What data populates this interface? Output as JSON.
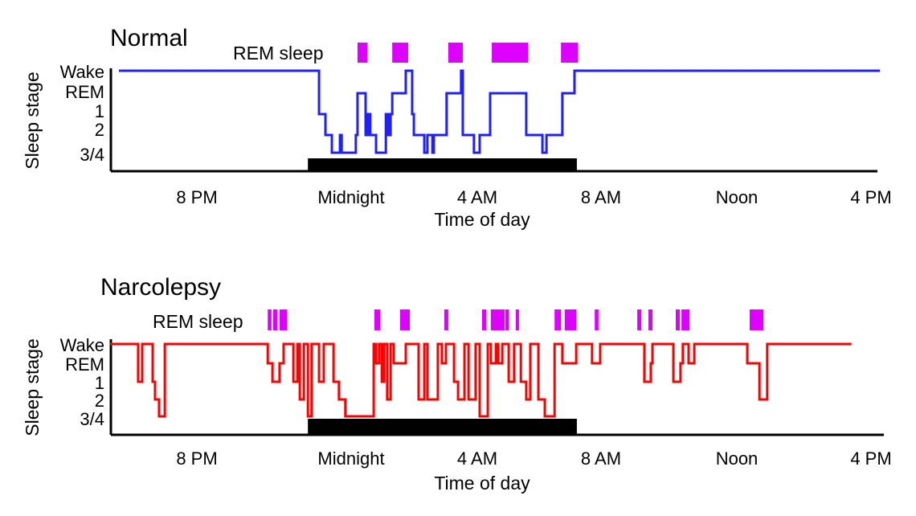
{
  "chart_data": [
    {
      "type": "line",
      "title": "Normal",
      "xlabel": "Time of day",
      "ylabel": "Sleep stage",
      "rem_label": "REM sleep",
      "x_unit": "hour of day (24 = midnight, 40 = 4 PM next day)",
      "xlim": [
        17.4,
        40.4
      ],
      "x_ticks": [
        {
          "hour": 20,
          "label": "8 PM"
        },
        {
          "hour": 24,
          "label": "Midnight"
        },
        {
          "hour": 28,
          "label": "4 AM"
        },
        {
          "hour": 32,
          "label": "8 AM"
        },
        {
          "hour": 36,
          "label": "Noon"
        },
        {
          "hour": 40,
          "label": "4 PM"
        }
      ],
      "y_categories": [
        "Wake",
        "REM",
        "1",
        "2",
        "3/4"
      ],
      "color": "#2020ff",
      "rem_color": "#dd00ff",
      "sleep_period": [
        23.29,
        31.26
      ],
      "rem_periods": [
        [
          24.76,
          25.05
        ],
        [
          25.79,
          26.26
        ],
        [
          27.45,
          27.88
        ],
        [
          28.74,
          29.81
        ],
        [
          30.79,
          31.29
        ]
      ],
      "steps": [
        [
          17.69,
          "Wake"
        ],
        [
          23.62,
          "1"
        ],
        [
          23.81,
          "2"
        ],
        [
          24.0,
          "3/4"
        ],
        [
          24.24,
          "2"
        ],
        [
          24.29,
          "3/4"
        ],
        [
          24.71,
          "2"
        ],
        [
          24.76,
          "REM"
        ],
        [
          25.0,
          "2"
        ],
        [
          25.07,
          "1"
        ],
        [
          25.14,
          "2"
        ],
        [
          25.31,
          "3/4"
        ],
        [
          25.6,
          "1"
        ],
        [
          25.67,
          "2"
        ],
        [
          25.74,
          "1"
        ],
        [
          25.79,
          "REM"
        ],
        [
          26.19,
          "Wake"
        ],
        [
          26.38,
          "1"
        ],
        [
          26.43,
          "2"
        ],
        [
          26.74,
          "3/4"
        ],
        [
          26.83,
          "2"
        ],
        [
          26.98,
          "3/4"
        ],
        [
          27.02,
          "2"
        ],
        [
          27.4,
          "REM"
        ],
        [
          27.83,
          "Wake"
        ],
        [
          27.88,
          "2"
        ],
        [
          28.21,
          "3/4"
        ],
        [
          28.38,
          "2"
        ],
        [
          28.69,
          "REM"
        ],
        [
          29.76,
          "2"
        ],
        [
          30.24,
          "3/4"
        ],
        [
          30.36,
          "2"
        ],
        [
          30.83,
          "REM"
        ],
        [
          31.19,
          "Wake"
        ],
        [
          40.24,
          "Wake"
        ]
      ]
    },
    {
      "type": "line",
      "title": "Narcolepsy",
      "xlabel": "Time of day",
      "ylabel": "Sleep stage",
      "rem_label": "REM sleep",
      "x_unit": "hour of day (24 = midnight, 40 = 4 PM next day)",
      "xlim": [
        17.4,
        40.4
      ],
      "x_ticks": [
        {
          "hour": 20,
          "label": "8 PM"
        },
        {
          "hour": 24,
          "label": "Midnight"
        },
        {
          "hour": 28,
          "label": "4 AM"
        },
        {
          "hour": 32,
          "label": "8 AM"
        },
        {
          "hour": 36,
          "label": "Noon"
        },
        {
          "hour": 40,
          "label": "4 PM"
        }
      ],
      "y_categories": [
        "Wake",
        "REM",
        "1",
        "2",
        "3/4"
      ],
      "color": "#ff0000",
      "rem_color": "#dd00ff",
      "sleep_period": [
        23.29,
        31.26
      ],
      "rem_periods": [
        [
          22.1,
          22.21
        ],
        [
          22.26,
          22.38
        ],
        [
          22.45,
          22.67
        ],
        [
          25.26,
          25.43
        ],
        [
          26.02,
          26.31
        ],
        [
          27.33,
          27.45
        ],
        [
          28.45,
          28.57
        ],
        [
          28.71,
          29.12
        ],
        [
          29.14,
          29.24
        ],
        [
          29.45,
          29.52
        ],
        [
          30.6,
          30.79
        ],
        [
          30.9,
          31.24
        ],
        [
          31.79,
          31.9
        ],
        [
          33.05,
          33.17
        ],
        [
          33.38,
          33.5
        ],
        [
          34.19,
          34.31
        ],
        [
          34.36,
          34.6
        ],
        [
          36.38,
          36.79
        ]
      ],
      "steps": [
        [
          17.43,
          "Wake"
        ],
        [
          18.26,
          "1"
        ],
        [
          18.38,
          "Wake"
        ],
        [
          18.69,
          "1"
        ],
        [
          18.76,
          "2"
        ],
        [
          18.88,
          "3/4"
        ],
        [
          19.05,
          "Wake"
        ],
        [
          22.1,
          "REM"
        ],
        [
          22.24,
          "1"
        ],
        [
          22.45,
          "REM"
        ],
        [
          22.57,
          "Wake"
        ],
        [
          22.86,
          "1"
        ],
        [
          22.98,
          "Wake"
        ],
        [
          23.05,
          "2"
        ],
        [
          23.17,
          "Wake"
        ],
        [
          23.29,
          "3/4"
        ],
        [
          23.4,
          "Wake"
        ],
        [
          23.62,
          "1"
        ],
        [
          23.76,
          "Wake"
        ],
        [
          24.05,
          "1"
        ],
        [
          24.21,
          "2"
        ],
        [
          24.4,
          "3/4"
        ],
        [
          25.24,
          "Wake"
        ],
        [
          25.31,
          "REM"
        ],
        [
          25.4,
          "Wake"
        ],
        [
          25.48,
          "1"
        ],
        [
          25.55,
          "Wake"
        ],
        [
          25.64,
          "2"
        ],
        [
          25.74,
          "Wake"
        ],
        [
          25.83,
          "REM"
        ],
        [
          26.19,
          "Wake"
        ],
        [
          26.57,
          "2"
        ],
        [
          26.74,
          "Wake"
        ],
        [
          26.83,
          "2"
        ],
        [
          27.14,
          "Wake"
        ],
        [
          27.26,
          "REM"
        ],
        [
          27.38,
          "Wake"
        ],
        [
          27.62,
          "1"
        ],
        [
          27.74,
          "2"
        ],
        [
          27.93,
          "Wake"
        ],
        [
          28.05,
          "2"
        ],
        [
          28.26,
          "Wake"
        ],
        [
          28.38,
          "3/4"
        ],
        [
          28.62,
          "Wake"
        ],
        [
          28.71,
          "REM"
        ],
        [
          28.86,
          "Wake"
        ],
        [
          28.93,
          "REM"
        ],
        [
          29.05,
          "Wake"
        ],
        [
          29.24,
          "1"
        ],
        [
          29.4,
          "Wake"
        ],
        [
          29.6,
          "1"
        ],
        [
          29.76,
          "2"
        ],
        [
          29.88,
          "Wake"
        ],
        [
          30.12,
          "2"
        ],
        [
          30.31,
          "3/4"
        ],
        [
          30.6,
          "Wake"
        ],
        [
          30.83,
          "REM"
        ],
        [
          31.24,
          "Wake"
        ],
        [
          31.71,
          "REM"
        ],
        [
          31.95,
          "Wake"
        ],
        [
          33.26,
          "1"
        ],
        [
          33.45,
          "REM"
        ],
        [
          33.5,
          "Wake"
        ],
        [
          34.12,
          "1"
        ],
        [
          34.33,
          "REM"
        ],
        [
          34.4,
          "Wake"
        ],
        [
          34.57,
          "REM"
        ],
        [
          34.74,
          "Wake"
        ],
        [
          36.31,
          "REM"
        ],
        [
          36.67,
          "2"
        ],
        [
          36.9,
          "Wake"
        ],
        [
          39.4,
          "Wake"
        ]
      ]
    }
  ]
}
